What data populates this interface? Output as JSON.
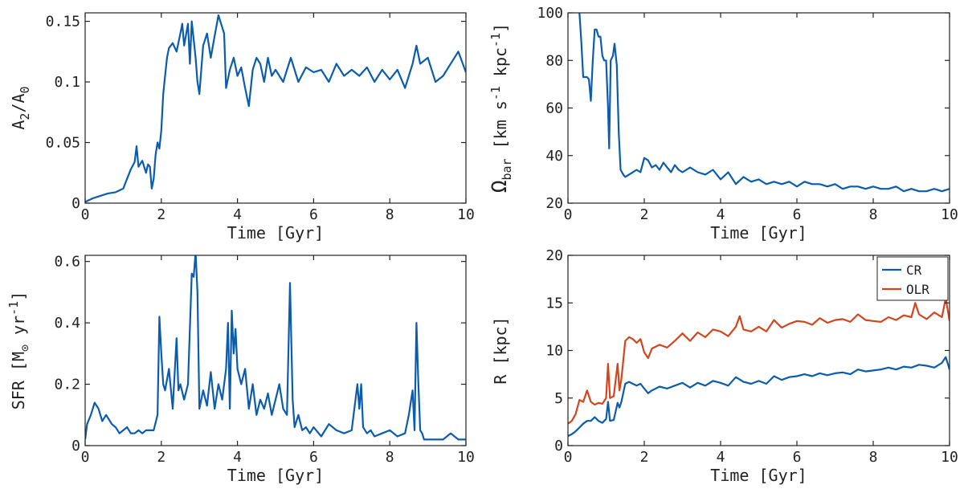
{
  "colors": {
    "blue": "#0B5CAD",
    "orange": "#D2451E"
  },
  "chart_data": [
    {
      "type": "line",
      "panel": "top-left",
      "xlabel": "Time [Gyr]",
      "ylabel_parts": [
        "A",
        "2",
        "/A",
        "0"
      ],
      "xlim": [
        0,
        10
      ],
      "ylim": [
        0,
        0.157
      ],
      "xticks": [
        0,
        2,
        4,
        6,
        8,
        10
      ],
      "xtick_labels": [
        "0",
        "2",
        "4",
        "6",
        "8",
        "10"
      ],
      "yticks": [
        0,
        0.05,
        0.1,
        0.15
      ],
      "ytick_labels": [
        "0",
        "0.05",
        "0.1",
        "0.15"
      ],
      "legend": null,
      "series": [
        {
          "name": "A2/A0",
          "color": "#0B5CAD",
          "x": [
            0,
            0.2,
            0.4,
            0.6,
            0.8,
            1.0,
            1.1,
            1.2,
            1.3,
            1.35,
            1.4,
            1.5,
            1.6,
            1.65,
            1.7,
            1.75,
            1.8,
            1.85,
            1.9,
            1.95,
            2.0,
            2.05,
            2.1,
            2.15,
            2.2,
            2.3,
            2.4,
            2.5,
            2.55,
            2.6,
            2.7,
            2.75,
            2.8,
            2.85,
            2.9,
            2.95,
            3.0,
            3.1,
            3.2,
            3.3,
            3.4,
            3.5,
            3.6,
            3.65,
            3.7,
            3.8,
            3.9,
            4.0,
            4.1,
            4.2,
            4.3,
            4.4,
            4.5,
            4.6,
            4.7,
            4.8,
            4.9,
            5.0,
            5.2,
            5.4,
            5.6,
            5.8,
            6.0,
            6.2,
            6.4,
            6.6,
            6.8,
            7.0,
            7.2,
            7.4,
            7.6,
            7.8,
            8.0,
            8.2,
            8.4,
            8.6,
            8.7,
            8.8,
            9.0,
            9.2,
            9.4,
            9.6,
            9.8,
            10.0
          ],
          "y": [
            0.001,
            0.004,
            0.006,
            0.008,
            0.009,
            0.012,
            0.02,
            0.028,
            0.034,
            0.047,
            0.03,
            0.035,
            0.025,
            0.032,
            0.03,
            0.012,
            0.02,
            0.04,
            0.05,
            0.045,
            0.06,
            0.09,
            0.105,
            0.12,
            0.128,
            0.132,
            0.125,
            0.14,
            0.148,
            0.13,
            0.148,
            0.115,
            0.15,
            0.135,
            0.12,
            0.1,
            0.09,
            0.13,
            0.14,
            0.12,
            0.138,
            0.155,
            0.145,
            0.14,
            0.095,
            0.11,
            0.12,
            0.105,
            0.112,
            0.095,
            0.08,
            0.11,
            0.12,
            0.115,
            0.1,
            0.12,
            0.105,
            0.11,
            0.1,
            0.12,
            0.1,
            0.112,
            0.108,
            0.11,
            0.1,
            0.115,
            0.105,
            0.11,
            0.105,
            0.112,
            0.1,
            0.11,
            0.102,
            0.11,
            0.095,
            0.115,
            0.13,
            0.115,
            0.12,
            0.1,
            0.105,
            0.115,
            0.125,
            0.108
          ]
        }
      ]
    },
    {
      "type": "line",
      "panel": "top-right",
      "xlabel": "Time [Gyr]",
      "ylabel_parts": [
        "Ω",
        "bar",
        " [km s",
        "-1",
        " kpc",
        "-1",
        "]"
      ],
      "xlim": [
        0,
        10
      ],
      "ylim": [
        20,
        100
      ],
      "xticks": [
        0,
        2,
        4,
        6,
        8,
        10
      ],
      "xtick_labels": [
        "0",
        "2",
        "4",
        "6",
        "8",
        "10"
      ],
      "yticks": [
        20,
        40,
        60,
        80,
        100
      ],
      "ytick_labels": [
        "20",
        "40",
        "60",
        "80",
        "100"
      ],
      "legend": null,
      "series": [
        {
          "name": "Omega_bar",
          "color": "#0B5CAD",
          "x": [
            0.3,
            0.35,
            0.4,
            0.45,
            0.5,
            0.55,
            0.6,
            0.65,
            0.7,
            0.75,
            0.8,
            0.85,
            0.9,
            0.95,
            1.0,
            1.05,
            1.08,
            1.12,
            1.18,
            1.22,
            1.28,
            1.33,
            1.38,
            1.45,
            1.5,
            1.6,
            1.7,
            1.8,
            1.9,
            2.0,
            2.1,
            2.2,
            2.3,
            2.4,
            2.5,
            2.6,
            2.7,
            2.8,
            2.9,
            3.0,
            3.2,
            3.4,
            3.6,
            3.8,
            4.0,
            4.2,
            4.4,
            4.6,
            4.8,
            5.0,
            5.2,
            5.4,
            5.6,
            5.8,
            6.0,
            6.2,
            6.4,
            6.6,
            6.8,
            7.0,
            7.2,
            7.4,
            7.6,
            7.8,
            8.0,
            8.2,
            8.4,
            8.6,
            8.8,
            9.0,
            9.2,
            9.4,
            9.6,
            9.8,
            10.0
          ],
          "y": [
            100,
            88,
            73,
            73,
            73,
            72,
            63,
            80,
            93,
            93,
            90,
            90,
            82,
            80,
            80,
            60,
            43,
            80,
            82,
            87,
            78,
            50,
            34,
            32,
            31,
            32,
            33,
            34,
            33,
            39,
            38,
            35,
            36,
            34,
            37,
            35,
            33,
            36,
            34,
            33,
            35,
            33,
            32,
            34,
            30,
            33,
            28,
            31,
            29,
            30,
            28,
            29,
            28,
            29,
            27,
            29,
            28,
            28,
            27,
            28,
            26,
            27,
            27,
            26,
            27,
            26,
            26,
            27,
            25,
            26,
            25,
            25,
            26,
            25,
            26
          ]
        }
      ]
    },
    {
      "type": "line",
      "panel": "bottom-left",
      "xlabel": "Time [Gyr]",
      "ylabel_parts": [
        "SFR [M",
        "⊙",
        " yr",
        "-1",
        "]"
      ],
      "xlim": [
        0,
        10
      ],
      "ylim": [
        0,
        0.62
      ],
      "xticks": [
        0,
        2,
        4,
        6,
        8,
        10
      ],
      "xtick_labels": [
        "0",
        "2",
        "4",
        "6",
        "8",
        "10"
      ],
      "yticks": [
        0,
        0.2,
        0.4,
        0.6
      ],
      "ytick_labels": [
        "0",
        "0.2",
        "0.4",
        "0.6"
      ],
      "legend": null,
      "series": [
        {
          "name": "SFR",
          "color": "#0B5CAD",
          "x": [
            0,
            0.05,
            0.15,
            0.25,
            0.35,
            0.45,
            0.55,
            0.7,
            0.8,
            0.9,
            1.0,
            1.1,
            1.2,
            1.3,
            1.4,
            1.5,
            1.6,
            1.7,
            1.8,
            1.9,
            1.95,
            2.0,
            2.05,
            2.1,
            2.2,
            2.3,
            2.4,
            2.45,
            2.5,
            2.6,
            2.7,
            2.8,
            2.85,
            2.9,
            2.95,
            3.0,
            3.1,
            3.2,
            3.3,
            3.4,
            3.5,
            3.6,
            3.7,
            3.75,
            3.8,
            3.85,
            3.9,
            3.95,
            4.0,
            4.1,
            4.2,
            4.3,
            4.4,
            4.5,
            4.6,
            4.7,
            4.8,
            4.9,
            5.0,
            5.1,
            5.2,
            5.3,
            5.38,
            5.45,
            5.5,
            5.6,
            5.7,
            5.8,
            5.9,
            6.0,
            6.2,
            6.4,
            6.6,
            6.8,
            7.0,
            7.1,
            7.15,
            7.2,
            7.25,
            7.3,
            7.4,
            7.5,
            7.6,
            7.8,
            8.0,
            8.2,
            8.4,
            8.5,
            8.6,
            8.65,
            8.7,
            8.75,
            8.8,
            8.85,
            8.9,
            9.0,
            9.2,
            9.4,
            9.6,
            9.8,
            10.0
          ],
          "y": [
            0.02,
            0.07,
            0.1,
            0.14,
            0.12,
            0.08,
            0.1,
            0.07,
            0.06,
            0.04,
            0.05,
            0.06,
            0.04,
            0.04,
            0.05,
            0.04,
            0.05,
            0.05,
            0.05,
            0.1,
            0.42,
            0.3,
            0.2,
            0.18,
            0.25,
            0.12,
            0.35,
            0.18,
            0.2,
            0.15,
            0.2,
            0.56,
            0.55,
            0.63,
            0.5,
            0.12,
            0.18,
            0.13,
            0.24,
            0.12,
            0.2,
            0.15,
            0.25,
            0.4,
            0.12,
            0.44,
            0.3,
            0.38,
            0.25,
            0.2,
            0.25,
            0.12,
            0.2,
            0.1,
            0.15,
            0.12,
            0.17,
            0.1,
            0.15,
            0.2,
            0.12,
            0.1,
            0.53,
            0.15,
            0.06,
            0.1,
            0.05,
            0.06,
            0.04,
            0.06,
            0.03,
            0.07,
            0.05,
            0.04,
            0.05,
            0.15,
            0.2,
            0.12,
            0.2,
            0.06,
            0.04,
            0.05,
            0.03,
            0.04,
            0.05,
            0.03,
            0.04,
            0.1,
            0.18,
            0.05,
            0.4,
            0.2,
            0.05,
            0.04,
            0.02,
            0.02,
            0.02,
            0.02,
            0.04,
            0.02,
            0.02
          ]
        }
      ]
    },
    {
      "type": "line",
      "panel": "bottom-right",
      "xlabel": "Time [Gyr]",
      "ylabel_parts": [
        "R [kpc]"
      ],
      "xlim": [
        0,
        10
      ],
      "ylim": [
        0,
        20
      ],
      "xticks": [
        0,
        2,
        4,
        6,
        8,
        10
      ],
      "xtick_labels": [
        "0",
        "2",
        "4",
        "6",
        "8",
        "10"
      ],
      "yticks": [
        0,
        5,
        10,
        15,
        20
      ],
      "ytick_labels": [
        "0",
        "5",
        "10",
        "15",
        "20"
      ],
      "legend": {
        "position": "top-right",
        "entries": [
          "CR",
          "OLR"
        ]
      },
      "series": [
        {
          "name": "CR",
          "color": "#0B5CAD",
          "x": [
            0,
            0.1,
            0.2,
            0.3,
            0.4,
            0.5,
            0.6,
            0.7,
            0.8,
            0.9,
            1.0,
            1.05,
            1.1,
            1.2,
            1.3,
            1.35,
            1.4,
            1.5,
            1.6,
            1.7,
            1.8,
            1.9,
            2.0,
            2.1,
            2.2,
            2.4,
            2.6,
            2.8,
            3.0,
            3.2,
            3.4,
            3.6,
            3.8,
            4.0,
            4.2,
            4.4,
            4.6,
            4.8,
            5.0,
            5.2,
            5.4,
            5.6,
            5.8,
            6.0,
            6.2,
            6.4,
            6.6,
            6.8,
            7.0,
            7.2,
            7.4,
            7.6,
            7.8,
            8.0,
            8.2,
            8.4,
            8.6,
            8.8,
            9.0,
            9.2,
            9.4,
            9.6,
            9.8,
            9.9,
            10.0
          ],
          "y": [
            1.0,
            1.2,
            1.5,
            1.9,
            2.3,
            2.6,
            2.6,
            3.0,
            2.6,
            2.4,
            2.8,
            4.6,
            2.6,
            2.7,
            4.5,
            4.0,
            4.6,
            6.5,
            6.7,
            6.5,
            6.3,
            6.5,
            6.0,
            5.5,
            5.8,
            6.2,
            6.0,
            6.3,
            6.6,
            6.1,
            6.6,
            6.3,
            6.8,
            6.6,
            6.3,
            7.2,
            6.7,
            6.5,
            6.8,
            6.5,
            7.3,
            6.9,
            7.2,
            7.3,
            7.5,
            7.3,
            7.6,
            7.4,
            7.6,
            7.7,
            7.5,
            8.0,
            7.8,
            7.9,
            8.0,
            8.2,
            8.0,
            8.3,
            8.2,
            8.5,
            8.4,
            8.2,
            8.7,
            9.3,
            8.0
          ]
        },
        {
          "name": "OLR",
          "color": "#D2451E",
          "x": [
            0,
            0.1,
            0.2,
            0.3,
            0.4,
            0.5,
            0.6,
            0.7,
            0.8,
            0.9,
            1.0,
            1.05,
            1.1,
            1.2,
            1.3,
            1.35,
            1.4,
            1.5,
            1.6,
            1.7,
            1.8,
            1.9,
            2.0,
            2.1,
            2.2,
            2.4,
            2.6,
            2.8,
            3.0,
            3.2,
            3.4,
            3.6,
            3.8,
            4.0,
            4.2,
            4.4,
            4.5,
            4.6,
            4.8,
            5.0,
            5.2,
            5.4,
            5.6,
            5.8,
            6.0,
            6.2,
            6.4,
            6.6,
            6.8,
            7.0,
            7.2,
            7.4,
            7.6,
            7.8,
            8.0,
            8.2,
            8.4,
            8.6,
            8.8,
            9.0,
            9.1,
            9.2,
            9.4,
            9.6,
            9.8,
            9.9,
            10.0
          ],
          "y": [
            2.3,
            2.6,
            3.3,
            4.8,
            4.6,
            5.8,
            4.6,
            4.3,
            4.5,
            4.4,
            5.0,
            8.6,
            5.0,
            5.2,
            8.6,
            5.8,
            7.0,
            11.0,
            11.4,
            11.2,
            10.8,
            11.2,
            9.8,
            9.2,
            10.2,
            10.6,
            10.3,
            11.0,
            11.8,
            11.0,
            11.9,
            11.4,
            12.2,
            12.0,
            11.5,
            12.5,
            13.6,
            12.2,
            12.0,
            12.5,
            12.0,
            13.2,
            12.4,
            12.8,
            13.1,
            13.0,
            12.7,
            13.4,
            12.9,
            13.2,
            13.3,
            13.0,
            13.8,
            13.2,
            13.1,
            13.0,
            13.5,
            13.2,
            13.7,
            13.5,
            15.0,
            13.8,
            13.3,
            14.0,
            13.5,
            15.5,
            13.1
          ]
        }
      ]
    }
  ]
}
